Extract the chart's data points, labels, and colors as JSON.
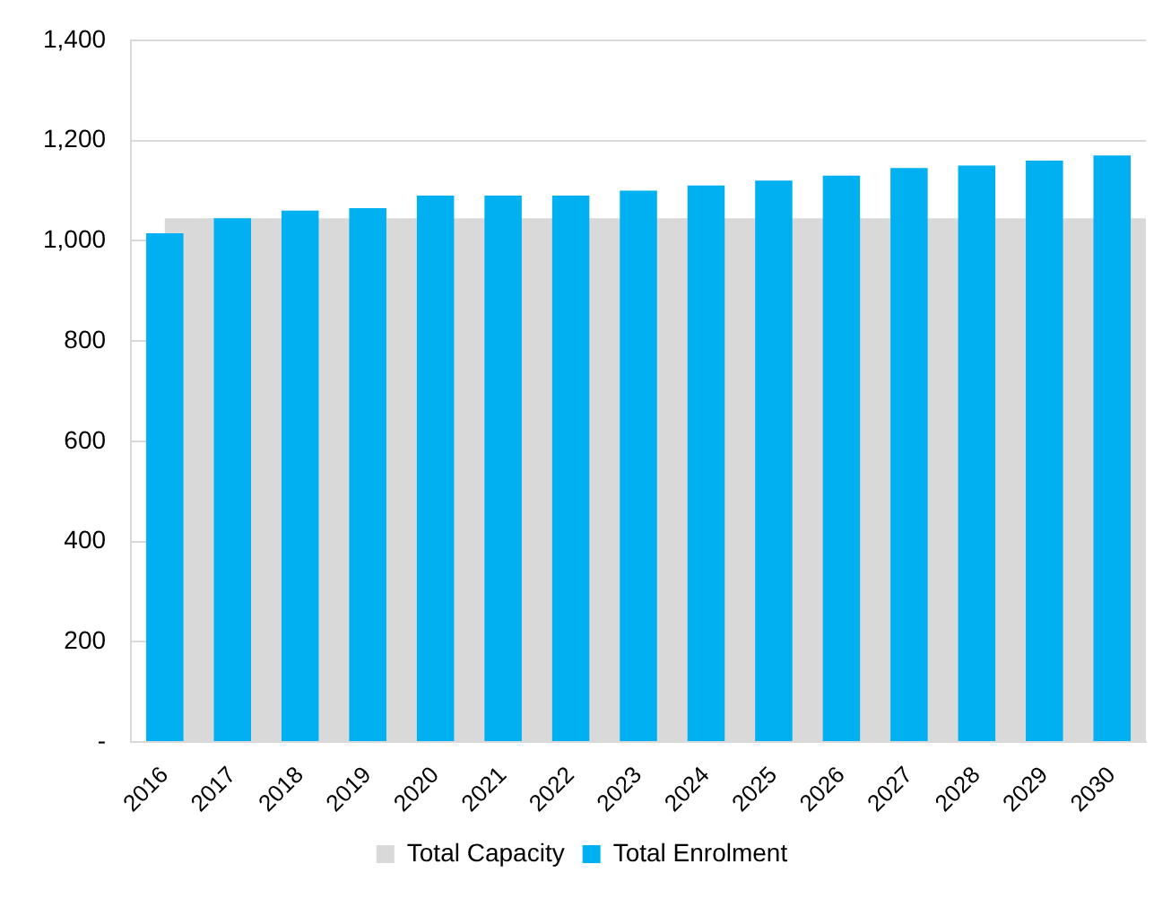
{
  "chart_data": {
    "type": "bar",
    "categories": [
      "2016",
      "2017",
      "2018",
      "2019",
      "2020",
      "2021",
      "2022",
      "2023",
      "2024",
      "2025",
      "2026",
      "2027",
      "2028",
      "2029",
      "2030"
    ],
    "bands": [
      {
        "axis": "y",
        "from": 0,
        "to": 1045,
        "label": "Total Capacity",
        "color": "#d9d9d9"
      }
    ],
    "series": [
      {
        "name": "Total Enrolment",
        "color": "#00b0f0",
        "values": [
          1015,
          1045,
          1060,
          1065,
          1090,
          1090,
          1090,
          1100,
          1110,
          1120,
          1130,
          1145,
          1150,
          1160,
          1170
        ]
      }
    ],
    "ylim": [
      0,
      1400
    ],
    "yticks": [
      {
        "value": 0,
        "label": "-"
      },
      200,
      400,
      600,
      800,
      {
        "value": 1000,
        "label": "1,000"
      },
      {
        "value": 1200,
        "label": "1,200"
      },
      {
        "value": 1400,
        "label": "1,400"
      }
    ],
    "grid": "y",
    "legend": "bottom"
  }
}
